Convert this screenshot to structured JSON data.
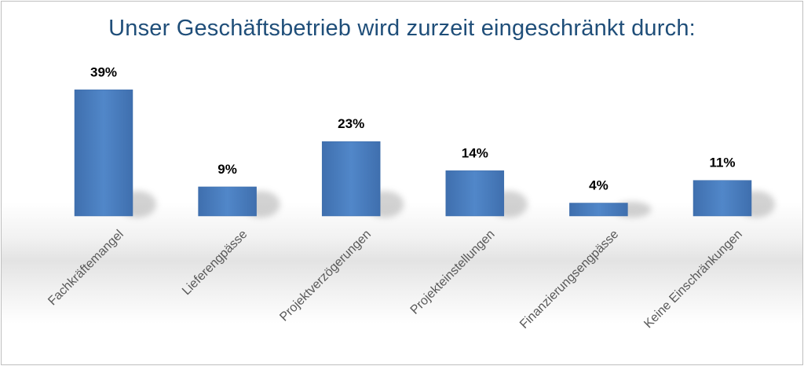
{
  "chart_data": {
    "type": "bar",
    "title": "Unser Geschäftsbetrieb wird zurzeit eingeschränkt durch:",
    "categories": [
      "Fachkräftemangel",
      "Lieferengpässe",
      "Projektverzögerungen",
      "Projekteinstellungen",
      "Finanzierungsengpässe",
      "Keine Einschränkungen"
    ],
    "values": [
      39,
      9,
      23,
      14,
      4,
      11
    ],
    "value_labels": [
      "39%",
      "9%",
      "23%",
      "14%",
      "4%",
      "11%"
    ],
    "unit": "%",
    "ylim": [
      0,
      40
    ],
    "grid": false,
    "legend": "none",
    "bar_color": "#4f81bd",
    "title_color": "#1f4e79"
  }
}
